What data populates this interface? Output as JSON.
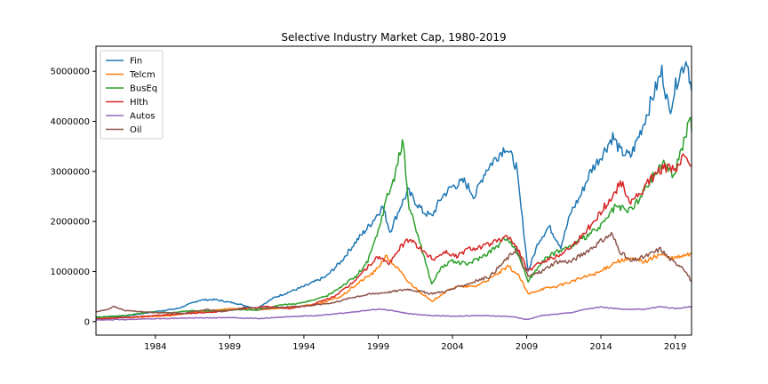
{
  "chart_data": {
    "type": "line",
    "title": "Selective Industry Market Cap, 1980-2019",
    "xlabel": "",
    "ylabel": "",
    "xlim": [
      1980.0,
      2020.1
    ],
    "ylim": [
      -270000,
      5500000
    ],
    "xticks": [
      1984,
      1989,
      1994,
      1999,
      2004,
      2009,
      2014,
      2019
    ],
    "yticks": [
      0,
      1000000,
      2000000,
      3000000,
      4000000,
      5000000
    ],
    "ytick_labels": [
      "0",
      "1000000",
      "2000000",
      "3000000",
      "4000000",
      "5000000"
    ],
    "legend_position": "top-left",
    "grid": false,
    "series": [
      {
        "name": "Fin",
        "color": "#1f77b4",
        "points": [
          [
            1980.0,
            80000
          ],
          [
            1982.0,
            110000
          ],
          [
            1984.0,
            200000
          ],
          [
            1985.5,
            260000
          ],
          [
            1987.0,
            430000
          ],
          [
            1988.0,
            440000
          ],
          [
            1989.5,
            360000
          ],
          [
            1990.8,
            260000
          ],
          [
            1992.0,
            480000
          ],
          [
            1994.0,
            700000
          ],
          [
            1995.5,
            900000
          ],
          [
            1996.5,
            1200000
          ],
          [
            1997.5,
            1600000
          ],
          [
            1998.5,
            1950000
          ],
          [
            1999.3,
            2300000
          ],
          [
            1999.8,
            1800000
          ],
          [
            2000.5,
            2300000
          ],
          [
            2001.0,
            2600000
          ],
          [
            2002.0,
            2200000
          ],
          [
            2002.6,
            2100000
          ],
          [
            2003.3,
            2500000
          ],
          [
            2004.0,
            2700000
          ],
          [
            2004.8,
            2800000
          ],
          [
            2005.5,
            2500000
          ],
          [
            2006.2,
            3000000
          ],
          [
            2007.0,
            3300000
          ],
          [
            2007.6,
            3500000
          ],
          [
            2008.3,
            3100000
          ],
          [
            2008.8,
            1800000
          ],
          [
            2009.1,
            1000000
          ],
          [
            2009.8,
            1600000
          ],
          [
            2010.5,
            1900000
          ],
          [
            2011.3,
            1500000
          ],
          [
            2012.0,
            2200000
          ],
          [
            2012.6,
            2500000
          ],
          [
            2013.3,
            3000000
          ],
          [
            2014.0,
            3300000
          ],
          [
            2014.8,
            3700000
          ],
          [
            2015.3,
            3400000
          ],
          [
            2016.0,
            3300000
          ],
          [
            2016.8,
            3900000
          ],
          [
            2017.5,
            4500000
          ],
          [
            2018.1,
            5000000
          ],
          [
            2018.6,
            4200000
          ],
          [
            2019.2,
            4900000
          ],
          [
            2019.8,
            5250000
          ],
          [
            2020.1,
            4600000
          ]
        ]
      },
      {
        "name": "Telcm",
        "color": "#ff7f0e",
        "points": [
          [
            1980.0,
            60000
          ],
          [
            1983.0,
            90000
          ],
          [
            1985.0,
            120000
          ],
          [
            1987.0,
            200000
          ],
          [
            1989.0,
            260000
          ],
          [
            1990.8,
            230000
          ],
          [
            1993.0,
            280000
          ],
          [
            1995.0,
            360000
          ],
          [
            1996.5,
            500000
          ],
          [
            1997.8,
            800000
          ],
          [
            1998.8,
            1000000
          ],
          [
            1999.5,
            1300000
          ],
          [
            2000.2,
            1100000
          ],
          [
            2001.0,
            800000
          ],
          [
            2001.8,
            600000
          ],
          [
            2002.6,
            400000
          ],
          [
            2003.3,
            550000
          ],
          [
            2004.2,
            700000
          ],
          [
            2005.5,
            700000
          ],
          [
            2006.5,
            850000
          ],
          [
            2007.8,
            1100000
          ],
          [
            2008.5,
            900000
          ],
          [
            2009.1,
            550000
          ],
          [
            2010.0,
            650000
          ],
          [
            2011.0,
            700000
          ],
          [
            2012.0,
            800000
          ],
          [
            2013.0,
            900000
          ],
          [
            2014.0,
            1000000
          ],
          [
            2015.0,
            1200000
          ],
          [
            2016.0,
            1250000
          ],
          [
            2017.0,
            1200000
          ],
          [
            2018.0,
            1350000
          ],
          [
            2018.7,
            1250000
          ],
          [
            2019.4,
            1300000
          ],
          [
            2020.1,
            1350000
          ]
        ]
      },
      {
        "name": "BusEq",
        "color": "#2ca02c",
        "points": [
          [
            1980.0,
            90000
          ],
          [
            1982.0,
            120000
          ],
          [
            1983.5,
            190000
          ],
          [
            1985.0,
            180000
          ],
          [
            1986.5,
            220000
          ],
          [
            1988.0,
            210000
          ],
          [
            1989.5,
            240000
          ],
          [
            1990.8,
            230000
          ],
          [
            1992.5,
            330000
          ],
          [
            1994.0,
            380000
          ],
          [
            1995.5,
            500000
          ],
          [
            1996.5,
            700000
          ],
          [
            1997.5,
            900000
          ],
          [
            1998.3,
            1200000
          ],
          [
            1999.0,
            1800000
          ],
          [
            1999.6,
            2500000
          ],
          [
            2000.0,
            2800000
          ],
          [
            2000.4,
            3300000
          ],
          [
            2000.7,
            3600000
          ],
          [
            2001.0,
            2400000
          ],
          [
            2001.8,
            1600000
          ],
          [
            2002.6,
            750000
          ],
          [
            2003.3,
            1100000
          ],
          [
            2004.0,
            1200000
          ],
          [
            2005.0,
            1150000
          ],
          [
            2006.0,
            1300000
          ],
          [
            2007.0,
            1500000
          ],
          [
            2007.7,
            1700000
          ],
          [
            2008.5,
            1300000
          ],
          [
            2009.1,
            800000
          ],
          [
            2010.0,
            1200000
          ],
          [
            2011.0,
            1400000
          ],
          [
            2012.0,
            1500000
          ],
          [
            2013.0,
            1700000
          ],
          [
            2014.0,
            1900000
          ],
          [
            2015.0,
            2300000
          ],
          [
            2015.8,
            2200000
          ],
          [
            2016.5,
            2400000
          ],
          [
            2017.5,
            2900000
          ],
          [
            2018.3,
            3200000
          ],
          [
            2018.8,
            2900000
          ],
          [
            2019.5,
            3500000
          ],
          [
            2020.0,
            4100000
          ],
          [
            2020.1,
            3800000
          ]
        ]
      },
      {
        "name": "Hlth",
        "color": "#d62728",
        "points": [
          [
            1980.0,
            50000
          ],
          [
            1982.0,
            80000
          ],
          [
            1984.0,
            120000
          ],
          [
            1986.0,
            160000
          ],
          [
            1988.0,
            190000
          ],
          [
            1990.0,
            260000
          ],
          [
            1991.5,
            300000
          ],
          [
            1993.0,
            260000
          ],
          [
            1994.5,
            330000
          ],
          [
            1996.0,
            500000
          ],
          [
            1997.0,
            700000
          ],
          [
            1998.0,
            1000000
          ],
          [
            1999.0,
            1300000
          ],
          [
            1999.8,
            1150000
          ],
          [
            2000.5,
            1500000
          ],
          [
            2001.2,
            1650000
          ],
          [
            2002.0,
            1400000
          ],
          [
            2002.7,
            1250000
          ],
          [
            2003.5,
            1400000
          ],
          [
            2004.3,
            1300000
          ],
          [
            2005.0,
            1450000
          ],
          [
            2006.0,
            1500000
          ],
          [
            2007.0,
            1600000
          ],
          [
            2007.8,
            1700000
          ],
          [
            2008.5,
            1400000
          ],
          [
            2009.1,
            1000000
          ],
          [
            2010.0,
            1200000
          ],
          [
            2011.0,
            1300000
          ],
          [
            2012.0,
            1500000
          ],
          [
            2013.0,
            1800000
          ],
          [
            2014.0,
            2200000
          ],
          [
            2014.8,
            2500000
          ],
          [
            2015.3,
            2800000
          ],
          [
            2016.0,
            2400000
          ],
          [
            2016.8,
            2600000
          ],
          [
            2017.5,
            2900000
          ],
          [
            2018.3,
            3100000
          ],
          [
            2019.0,
            3000000
          ],
          [
            2019.7,
            3350000
          ],
          [
            2020.1,
            3100000
          ]
        ]
      },
      {
        "name": "Autos",
        "color": "#9467bd",
        "points": [
          [
            1980.0,
            30000
          ],
          [
            1983.0,
            50000
          ],
          [
            1986.0,
            70000
          ],
          [
            1989.0,
            80000
          ],
          [
            1991.0,
            60000
          ],
          [
            1993.0,
            100000
          ],
          [
            1995.0,
            120000
          ],
          [
            1997.0,
            180000
          ],
          [
            1999.0,
            250000
          ],
          [
            2000.0,
            220000
          ],
          [
            2001.0,
            160000
          ],
          [
            2002.5,
            120000
          ],
          [
            2004.0,
            110000
          ],
          [
            2006.0,
            120000
          ],
          [
            2008.0,
            100000
          ],
          [
            2009.0,
            40000
          ],
          [
            2010.0,
            120000
          ],
          [
            2011.0,
            150000
          ],
          [
            2012.0,
            180000
          ],
          [
            2013.0,
            250000
          ],
          [
            2014.0,
            290000
          ],
          [
            2015.0,
            260000
          ],
          [
            2016.0,
            240000
          ],
          [
            2017.0,
            250000
          ],
          [
            2018.0,
            300000
          ],
          [
            2019.0,
            260000
          ],
          [
            2020.1,
            300000
          ]
        ]
      },
      {
        "name": "Oil",
        "color": "#8c564b",
        "points": [
          [
            1980.0,
            200000
          ],
          [
            1980.8,
            240000
          ],
          [
            1981.2,
            300000
          ],
          [
            1982.0,
            220000
          ],
          [
            1983.0,
            200000
          ],
          [
            1984.0,
            180000
          ],
          [
            1986.0,
            170000
          ],
          [
            1987.5,
            240000
          ],
          [
            1988.5,
            200000
          ],
          [
            1990.0,
            280000
          ],
          [
            1991.5,
            260000
          ],
          [
            1993.0,
            300000
          ],
          [
            1994.5,
            320000
          ],
          [
            1996.0,
            380000
          ],
          [
            1997.5,
            500000
          ],
          [
            1998.5,
            550000
          ],
          [
            2000.0,
            600000
          ],
          [
            2001.0,
            650000
          ],
          [
            2002.5,
            560000
          ],
          [
            2003.5,
            600000
          ],
          [
            2004.5,
            700000
          ],
          [
            2005.5,
            800000
          ],
          [
            2006.5,
            900000
          ],
          [
            2007.5,
            1200000
          ],
          [
            2008.3,
            1450000
          ],
          [
            2008.8,
            1100000
          ],
          [
            2009.1,
            900000
          ],
          [
            2010.0,
            1000000
          ],
          [
            2011.0,
            1200000
          ],
          [
            2012.0,
            1200000
          ],
          [
            2013.0,
            1400000
          ],
          [
            2014.0,
            1600000
          ],
          [
            2014.7,
            1750000
          ],
          [
            2015.3,
            1400000
          ],
          [
            2016.0,
            1200000
          ],
          [
            2017.0,
            1300000
          ],
          [
            2018.0,
            1450000
          ],
          [
            2018.8,
            1200000
          ],
          [
            2019.5,
            1100000
          ],
          [
            2020.1,
            800000
          ]
        ]
      }
    ]
  }
}
